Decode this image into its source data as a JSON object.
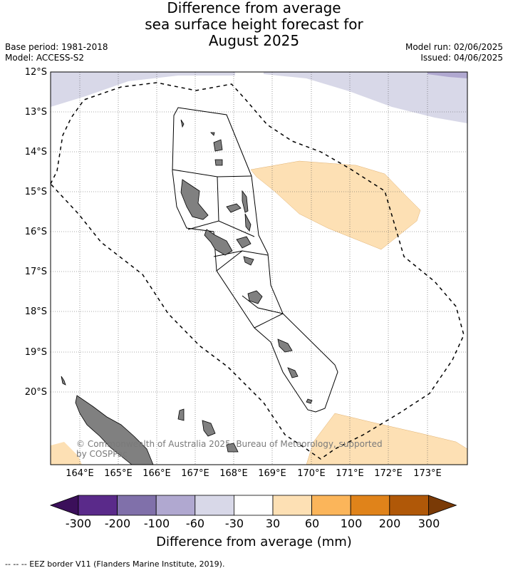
{
  "title": {
    "line1": "Difference from average",
    "line2": "sea surface height forecast for",
    "line3": "August 2025"
  },
  "meta": {
    "base_period": "Base period: 1981-2018",
    "model": "Model: ACCESS-S2",
    "model_run": "Model run: 02/06/2025",
    "issued": "Issued: 04/06/2025"
  },
  "map": {
    "lat_labels": [
      "12°S",
      "13°S",
      "14°S",
      "15°S",
      "16°S",
      "17°S",
      "18°S",
      "19°S",
      "20°S"
    ],
    "lon_labels": [
      "164°E",
      "165°E",
      "166°E",
      "167°E",
      "168°E",
      "169°E",
      "170°E",
      "171°E",
      "172°E",
      "173°E"
    ],
    "copyright": [
      "© Commonwealth of Australia 2025, Bureau of Meteorology, supported",
      "by COSPPac"
    ]
  },
  "legend": {
    "labels": [
      "-300",
      "-200",
      "-100",
      "-60",
      "-30",
      "30",
      "60",
      "100",
      "200",
      "300"
    ],
    "title": "Difference from average (mm)",
    "colors": [
      "#3b0f5a",
      "#5a2a8a",
      "#8070aa",
      "#b0a8d0",
      "#d8d8e8",
      "#ffffff",
      "#fde0b4",
      "#fbb55a",
      "#e0831a",
      "#b05808",
      "#7a3a06"
    ]
  },
  "footnote": "--  --  -- EEZ border V11 (Flanders Marine Institute, 2019)."
}
